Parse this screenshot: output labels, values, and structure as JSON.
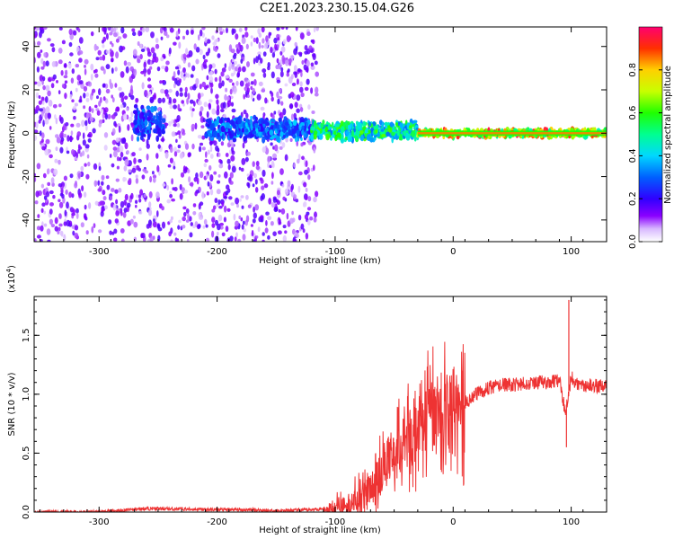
{
  "title": "C2E1.2023.230.15.04.G26",
  "chart_data": [
    {
      "type": "heatmap",
      "xlabel": "Height of straight line (km)",
      "ylabel": "Frequency (Hz)",
      "xlim": [
        -355,
        130
      ],
      "ylim": [
        -50,
        49
      ],
      "xticks": [
        -300,
        -200,
        -100,
        0,
        100
      ],
      "yticks": [
        -40,
        -20,
        0,
        20,
        40
      ],
      "colorbar": {
        "label": "Normalized spectral amplitude",
        "range": [
          0,
          1
        ],
        "ticks": [
          "0.0",
          "0.2",
          "0.4",
          "0.6",
          "0.8"
        ],
        "colormap": "rainbow"
      },
      "bands": [
        {
          "x": [
            -355,
            -115
          ],
          "freq_spread": 49,
          "amplitude": 0.05,
          "note": "diffuse noise across full frequency range"
        },
        {
          "x": [
            -270,
            -245
          ],
          "freq_center": 5,
          "freq_spread": 8,
          "amplitude": 0.3
        },
        {
          "x": [
            -210,
            -120
          ],
          "freq_center": 2,
          "freq_spread": 6,
          "amplitude": 0.35
        },
        {
          "x": [
            -120,
            -30
          ],
          "freq_center": 1,
          "freq_spread": 5,
          "amplitude": 0.55
        },
        {
          "x": [
            -30,
            130
          ],
          "freq_center": 0,
          "freq_spread": 2,
          "amplitude": 0.85
        }
      ]
    },
    {
      "type": "line",
      "xlabel": "Height of straight line (km)",
      "ylabel": "SNR (10 * v/v)",
      "yscale_label": "(x10",
      "yscale_exp": "4",
      "xlim": [
        -355,
        130
      ],
      "ylim": [
        0,
        1.83
      ],
      "xticks": [
        -300,
        -200,
        -100,
        0,
        100
      ],
      "yticks": [
        "0.0",
        "0.5",
        "1.0",
        "1.5"
      ],
      "color": "#ee3333",
      "series": [
        {
          "x": [
            -355,
            -300,
            -260,
            -200,
            -170,
            -150,
            -120,
            -100,
            -80,
            -70,
            -60,
            -50,
            -40,
            -30,
            -20,
            -10,
            0,
            10,
            20,
            30,
            40,
            50,
            60,
            70,
            80,
            90,
            95,
            100,
            105,
            110,
            120,
            130
          ],
          "y": [
            0.0,
            0.0,
            0.03,
            0.02,
            0.02,
            0.01,
            0.02,
            0.04,
            0.1,
            0.2,
            0.35,
            0.5,
            0.6,
            0.7,
            0.8,
            0.85,
            0.88,
            0.93,
            1.0,
            1.05,
            1.08,
            1.08,
            1.09,
            1.1,
            1.1,
            1.12,
            0.85,
            1.15,
            1.08,
            1.08,
            1.07,
            1.07
          ],
          "peaks": [
            {
              "x": 98,
              "y": 1.8
            },
            {
              "x": 96,
              "y": 0.55
            },
            {
              "x": 8,
              "y": 1.2
            }
          ]
        }
      ]
    }
  ]
}
